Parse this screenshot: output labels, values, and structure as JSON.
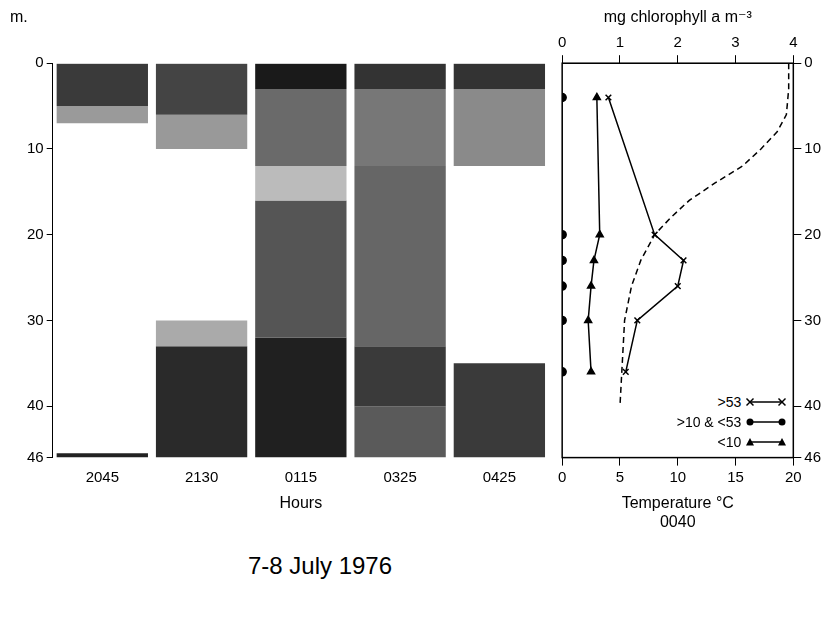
{
  "chart_data": [
    {
      "type": "bar",
      "y_label": "m.",
      "x_label": "Hours",
      "categories": [
        "2045",
        "2130",
        "0115",
        "0325",
        "0425"
      ],
      "ylim": [
        0,
        46
      ],
      "yticks": [
        0,
        10,
        20,
        30,
        40,
        46
      ],
      "layers": [
        [
          {
            "from": 0,
            "to": 5,
            "color": "#3a3a3a"
          },
          {
            "from": 5,
            "to": 7,
            "color": "#9a9a9a"
          },
          {
            "from": 45.5,
            "to": 46,
            "color": "#222222"
          }
        ],
        [
          {
            "from": 0,
            "to": 6,
            "color": "#444444"
          },
          {
            "from": 6,
            "to": 10,
            "color": "#999999"
          },
          {
            "from": 30,
            "to": 33,
            "color": "#aaaaaa"
          },
          {
            "from": 33,
            "to": 46,
            "color": "#2a2a2a"
          }
        ],
        [
          {
            "from": 0,
            "to": 3,
            "color": "#1a1a1a"
          },
          {
            "from": 3,
            "to": 12,
            "color": "#6a6a6a"
          },
          {
            "from": 12,
            "to": 16,
            "color": "#bbbbbb"
          },
          {
            "from": 16,
            "to": 32,
            "color": "#555555"
          },
          {
            "from": 32,
            "to": 46,
            "color": "#202020"
          }
        ],
        [
          {
            "from": 0,
            "to": 3,
            "color": "#333333"
          },
          {
            "from": 3,
            "to": 12,
            "color": "#777777"
          },
          {
            "from": 12,
            "to": 33,
            "color": "#666666"
          },
          {
            "from": 33,
            "to": 40,
            "color": "#3a3a3a"
          },
          {
            "from": 40,
            "to": 46,
            "color": "#5a5a5a"
          }
        ],
        [
          {
            "from": 0,
            "to": 3,
            "color": "#333333"
          },
          {
            "from": 3,
            "to": 12,
            "color": "#8a8a8a"
          },
          {
            "from": 35,
            "to": 46,
            "color": "#3a3a3a"
          }
        ]
      ]
    },
    {
      "type": "line",
      "x_label": "Temperature °C",
      "time": "0040",
      "x2_label": "mg chlorophyll a m⁻³",
      "xlim": [
        0,
        20
      ],
      "xticks": [
        0,
        5,
        10,
        15,
        20
      ],
      "x2lim": [
        0,
        4
      ],
      "x2ticks": [
        0,
        1,
        2,
        3,
        4
      ],
      "ylim": [
        0,
        46
      ],
      "yticks": [
        0,
        10,
        20,
        30,
        40,
        46
      ],
      "legend": "lower right",
      "series": [
        {
          "name": ">53",
          "axis": "x2",
          "marker": "x",
          "line_style": "solid",
          "color": "#000000",
          "values": [
            0.8,
            1.6,
            2.1,
            2.0,
            1.3,
            1.1
          ],
          "y": [
            4,
            20,
            23,
            26,
            30,
            36
          ]
        },
        {
          "name": ">10 & <53",
          "axis": "x2",
          "marker": "circle",
          "line_style": "solid",
          "color": "#000000",
          "values": [
            0,
            0,
            0,
            0,
            0,
            0
          ],
          "y": [
            4,
            20,
            23,
            26,
            30,
            36
          ]
        },
        {
          "name": "<10",
          "axis": "x2",
          "marker": "triangle",
          "line_style": "solid",
          "color": "#000000",
          "values": [
            0.6,
            0.65,
            0.55,
            0.5,
            0.45,
            0.5
          ],
          "y": [
            4,
            20,
            23,
            26,
            30,
            36
          ]
        },
        {
          "axis": "x",
          "line_style": "dashed",
          "color": "#000000",
          "values": [
            19.6,
            19.6,
            19.4,
            18.6,
            17.2,
            15.6,
            13.2,
            11,
            9.4,
            8,
            6.8,
            6,
            5.4,
            5
          ],
          "y": [
            0,
            3,
            6,
            8,
            10,
            12,
            14,
            16,
            18,
            20,
            23,
            26,
            30,
            40
          ]
        }
      ]
    }
  ],
  "caption": "7-8 July 1976"
}
